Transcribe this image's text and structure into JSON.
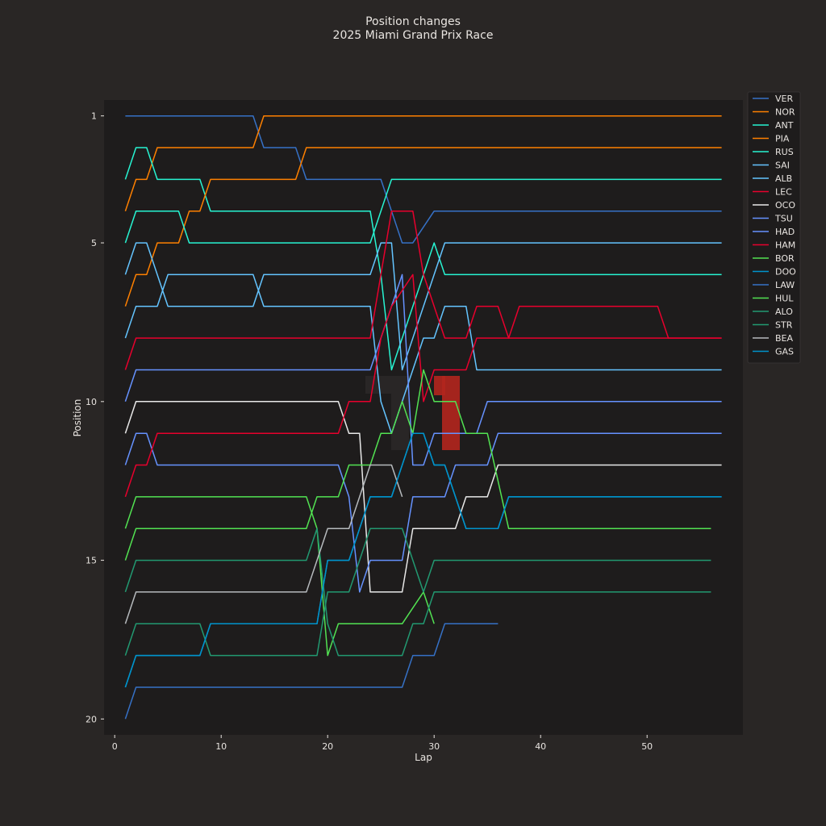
{
  "chart_data": {
    "type": "line",
    "title": "Position changes",
    "subtitle": "2025 Miami Grand Prix Race",
    "xlabel": "Lap",
    "ylabel": "Position",
    "xlim": [
      -1,
      59
    ],
    "ylim": [
      20.5,
      0.5
    ],
    "y_inverted": true,
    "xticks": [
      0,
      10,
      20,
      30,
      40,
      50
    ],
    "yticks": [
      1,
      5,
      10,
      15,
      20
    ],
    "grid": false,
    "legend_position": "top-right outside",
    "colors": {
      "figure_bg": "#292625",
      "axes_bg": "#1e1c1c",
      "text": "#e8e4e0"
    },
    "series": [
      {
        "name": "VER",
        "color": "#3671c6",
        "points": [
          [
            1,
            1
          ],
          [
            13,
            1
          ],
          [
            14,
            2
          ],
          [
            17,
            2
          ],
          [
            18,
            3
          ],
          [
            25,
            3
          ],
          [
            27,
            5
          ],
          [
            28,
            5
          ],
          [
            30,
            4
          ],
          [
            57,
            4
          ]
        ]
      },
      {
        "name": "NOR",
        "color": "#ff8000",
        "points": [
          [
            1,
            4
          ],
          [
            2,
            3
          ],
          [
            3,
            3
          ],
          [
            4,
            2
          ],
          [
            13,
            2
          ],
          [
            14,
            1
          ],
          [
            57,
            1
          ]
        ]
      },
      {
        "name": "ANT",
        "color": "#27f4d2",
        "points": [
          [
            1,
            3
          ],
          [
            2,
            2
          ],
          [
            3,
            2
          ],
          [
            4,
            3
          ],
          [
            8,
            3
          ],
          [
            9,
            4
          ],
          [
            24,
            4
          ],
          [
            25,
            6
          ],
          [
            26,
            9
          ],
          [
            27,
            8
          ],
          [
            30,
            5
          ],
          [
            31,
            6
          ],
          [
            57,
            6
          ]
        ]
      },
      {
        "name": "PIA",
        "color": "#ff8000",
        "points": [
          [
            1,
            7
          ],
          [
            2,
            6
          ],
          [
            3,
            6
          ],
          [
            4,
            5
          ],
          [
            6,
            5
          ],
          [
            7,
            4
          ],
          [
            8,
            4
          ],
          [
            9,
            3
          ],
          [
            17,
            3
          ],
          [
            18,
            2
          ],
          [
            57,
            2
          ]
        ]
      },
      {
        "name": "RUS",
        "color": "#27f4d2",
        "points": [
          [
            1,
            5
          ],
          [
            2,
            4
          ],
          [
            6,
            4
          ],
          [
            7,
            5
          ],
          [
            24,
            5
          ],
          [
            26,
            3
          ],
          [
            57,
            3
          ]
        ]
      },
      {
        "name": "SAI",
        "color": "#64c4ff",
        "points": [
          [
            1,
            8
          ],
          [
            2,
            7
          ],
          [
            4,
            7
          ],
          [
            5,
            6
          ],
          [
            13,
            6
          ],
          [
            14,
            7
          ],
          [
            24,
            7
          ],
          [
            25,
            10
          ],
          [
            26,
            11
          ],
          [
            27,
            10
          ],
          [
            29,
            8
          ],
          [
            30,
            8
          ],
          [
            31,
            7
          ],
          [
            33,
            7
          ],
          [
            34,
            9
          ],
          [
            57,
            9
          ]
        ]
      },
      {
        "name": "ALB",
        "color": "#64c4ff",
        "points": [
          [
            1,
            6
          ],
          [
            2,
            5
          ],
          [
            3,
            5
          ],
          [
            5,
            7
          ],
          [
            13,
            7
          ],
          [
            14,
            6
          ],
          [
            24,
            6
          ],
          [
            25,
            5
          ],
          [
            26,
            5
          ],
          [
            27,
            9
          ],
          [
            28,
            8
          ],
          [
            30,
            6
          ],
          [
            31,
            5
          ],
          [
            57,
            5
          ]
        ]
      },
      {
        "name": "LEC",
        "color": "#e8002d",
        "points": [
          [
            1,
            9
          ],
          [
            2,
            8
          ],
          [
            24,
            8
          ],
          [
            25,
            6
          ],
          [
            26,
            4
          ],
          [
            28,
            4
          ],
          [
            29,
            6
          ],
          [
            30,
            7
          ],
          [
            31,
            8
          ],
          [
            33,
            8
          ],
          [
            34,
            7
          ],
          [
            36,
            7
          ],
          [
            37,
            8
          ],
          [
            57,
            8
          ]
        ]
      },
      {
        "name": "OCO",
        "color": "#e8e8e8",
        "points": [
          [
            1,
            11
          ],
          [
            2,
            10
          ],
          [
            21,
            10
          ],
          [
            22,
            11
          ],
          [
            23,
            11
          ],
          [
            24,
            16
          ],
          [
            27,
            16
          ],
          [
            28,
            14
          ],
          [
            32,
            14
          ],
          [
            33,
            13
          ],
          [
            35,
            13
          ],
          [
            36,
            12
          ],
          [
            57,
            12
          ]
        ]
      },
      {
        "name": "TSU",
        "color": "#6692ff",
        "points": [
          [
            1,
            10
          ],
          [
            2,
            9
          ],
          [
            24,
            9
          ],
          [
            25,
            8
          ],
          [
            26,
            7
          ],
          [
            27,
            6
          ],
          [
            28,
            12
          ],
          [
            29,
            12
          ],
          [
            30,
            11
          ],
          [
            34,
            11
          ],
          [
            35,
            10
          ],
          [
            57,
            10
          ]
        ]
      },
      {
        "name": "HAD",
        "color": "#6692ff",
        "points": [
          [
            1,
            12
          ],
          [
            2,
            11
          ],
          [
            3,
            11
          ],
          [
            4,
            12
          ],
          [
            21,
            12
          ],
          [
            22,
            13
          ],
          [
            23,
            16
          ],
          [
            24,
            15
          ],
          [
            27,
            15
          ],
          [
            28,
            13
          ],
          [
            31,
            13
          ],
          [
            32,
            12
          ],
          [
            35,
            12
          ],
          [
            36,
            11
          ],
          [
            57,
            11
          ]
        ]
      },
      {
        "name": "HAM",
        "color": "#e8002d",
        "points": [
          [
            1,
            13
          ],
          [
            2,
            12
          ],
          [
            3,
            12
          ],
          [
            4,
            11
          ],
          [
            21,
            11
          ],
          [
            22,
            10
          ],
          [
            24,
            10
          ],
          [
            25,
            8
          ],
          [
            26,
            7
          ],
          [
            28,
            6
          ],
          [
            29,
            10
          ],
          [
            30,
            9
          ],
          [
            33,
            9
          ],
          [
            34,
            8
          ],
          [
            37,
            8
          ],
          [
            38,
            7
          ],
          [
            51,
            7
          ],
          [
            52,
            8
          ],
          [
            57,
            8
          ]
        ]
      },
      {
        "name": "BOR",
        "color": "#52e252",
        "points": [
          [
            1,
            14
          ],
          [
            2,
            13
          ],
          [
            18,
            13
          ],
          [
            19,
            14
          ],
          [
            20,
            18
          ],
          [
            21,
            17
          ],
          [
            27,
            17
          ],
          [
            29,
            16
          ],
          [
            30,
            17
          ]
        ]
      },
      {
        "name": "DOO",
        "color": "#0093cc",
        "points": [
          [
            1,
            19
          ],
          [
            2,
            18
          ],
          [
            8,
            18
          ],
          [
            9,
            17
          ],
          [
            19,
            17
          ],
          [
            20,
            15
          ],
          [
            22,
            15
          ],
          [
            24,
            13
          ],
          [
            26,
            13
          ],
          [
            28,
            11
          ],
          [
            29,
            11
          ],
          [
            30,
            12
          ],
          [
            31,
            12
          ],
          [
            33,
            14
          ],
          [
            36,
            14
          ],
          [
            37,
            13
          ],
          [
            57,
            13
          ]
        ]
      },
      {
        "name": "LAW",
        "color": "#3671c6",
        "points": [
          [
            1,
            20
          ],
          [
            2,
            19
          ],
          [
            27,
            19
          ],
          [
            28,
            18
          ],
          [
            30,
            18
          ],
          [
            31,
            17
          ],
          [
            36,
            17
          ]
        ]
      },
      {
        "name": "HUL",
        "color": "#52e252",
        "points": [
          [
            1,
            15
          ],
          [
            2,
            14
          ],
          [
            18,
            14
          ],
          [
            19,
            13
          ],
          [
            21,
            13
          ],
          [
            22,
            12
          ],
          [
            24,
            12
          ],
          [
            25,
            11
          ],
          [
            26,
            11
          ],
          [
            27,
            10
          ],
          [
            28,
            11
          ],
          [
            29,
            9
          ],
          [
            30,
            10
          ],
          [
            32,
            10
          ],
          [
            33,
            11
          ],
          [
            35,
            11
          ],
          [
            37,
            14
          ],
          [
            56,
            14
          ]
        ]
      },
      {
        "name": "ALO",
        "color": "#229971",
        "points": [
          [
            1,
            18
          ],
          [
            2,
            17
          ],
          [
            8,
            17
          ],
          [
            9,
            18
          ],
          [
            19,
            18
          ],
          [
            20,
            16
          ],
          [
            22,
            16
          ],
          [
            24,
            14
          ],
          [
            27,
            14
          ],
          [
            29,
            16
          ],
          [
            30,
            15
          ],
          [
            56,
            15
          ]
        ]
      },
      {
        "name": "STR",
        "color": "#229971",
        "points": [
          [
            1,
            16
          ],
          [
            2,
            15
          ],
          [
            18,
            15
          ],
          [
            19,
            14
          ],
          [
            20,
            17
          ],
          [
            21,
            18
          ],
          [
            27,
            18
          ],
          [
            28,
            17
          ],
          [
            29,
            17
          ],
          [
            30,
            16
          ],
          [
            56,
            16
          ]
        ]
      },
      {
        "name": "BEA",
        "color": "#b6babd",
        "points": [
          [
            1,
            17
          ],
          [
            2,
            16
          ],
          [
            18,
            16
          ],
          [
            19,
            15
          ],
          [
            20,
            14
          ],
          [
            22,
            14
          ],
          [
            24,
            12
          ],
          [
            26,
            12
          ],
          [
            27,
            13
          ]
        ]
      },
      {
        "name": "GAS",
        "color": "#0093cc",
        "points": [
          [
            1,
            19
          ],
          [
            2,
            18
          ],
          [
            8,
            18
          ],
          [
            9,
            17
          ],
          [
            19,
            17
          ],
          [
            20,
            15
          ],
          [
            22,
            15
          ],
          [
            24,
            13
          ],
          [
            26,
            13
          ],
          [
            28,
            11
          ],
          [
            29,
            11
          ],
          [
            30,
            12
          ],
          [
            31,
            12
          ],
          [
            33,
            14
          ],
          [
            36,
            14
          ],
          [
            37,
            13
          ],
          [
            57,
            13
          ]
        ]
      }
    ]
  }
}
